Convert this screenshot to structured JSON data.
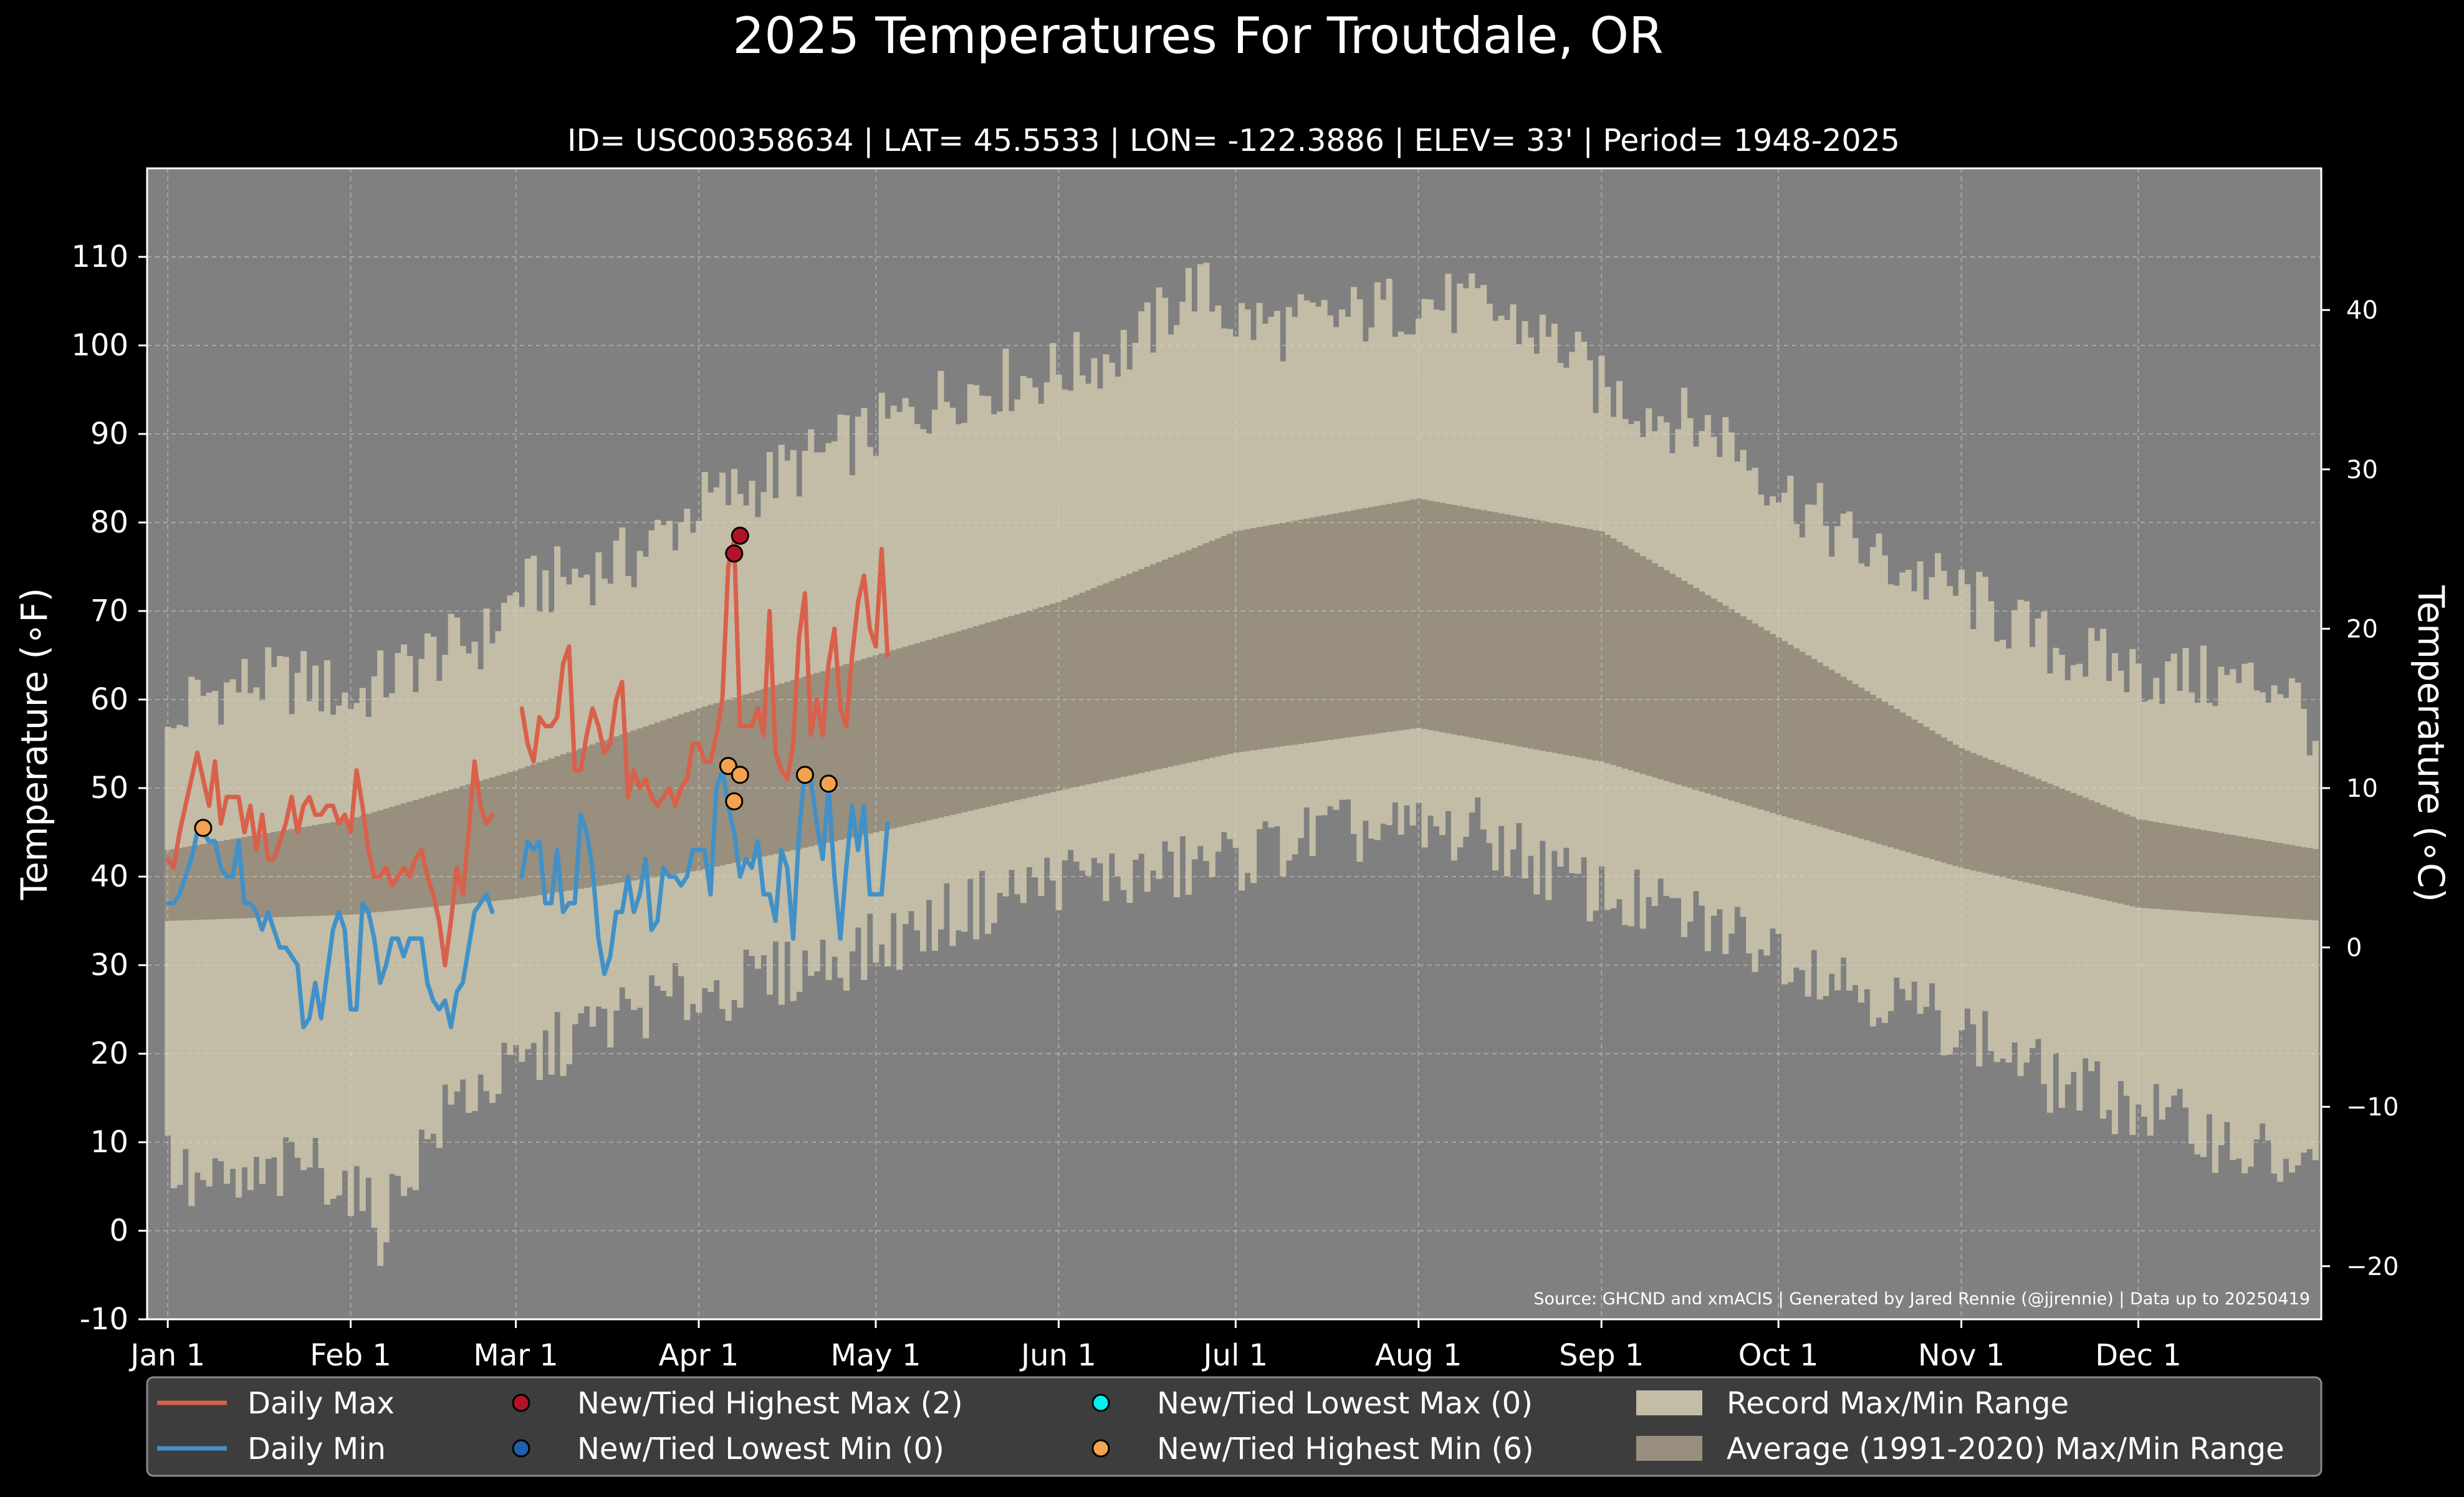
{
  "chart_data": {
    "type": "line",
    "title": "2025 Temperatures For Troutdale, OR",
    "subtitle": "ID= USC00358634 | LAT= 45.5533 | LON= -122.3886 | ELEV= 33' | Period= 1948-2025",
    "ylabel_left": "Temperature (∘F)",
    "ylabel_right": "Temperature (∘C)",
    "source": "Source: GHCND and xmACIS | Generated by Jared Rennie (@jjrennie) | Data up to 20250419",
    "ylim_f": [
      -10,
      120
    ],
    "xlim_day": [
      -2.5,
      366
    ],
    "yticks_f": [
      -10,
      0,
      10,
      20,
      30,
      40,
      50,
      60,
      70,
      80,
      90,
      100,
      110
    ],
    "yticks_c": [
      -20,
      -10,
      0,
      10,
      20,
      30,
      40
    ],
    "month_ticks": [
      {
        "label": "Jan 1",
        "day": 1
      },
      {
        "label": "Feb 1",
        "day": 32
      },
      {
        "label": "Mar 1",
        "day": 60
      },
      {
        "label": "Apr 1",
        "day": 91
      },
      {
        "label": "May 1",
        "day": 121
      },
      {
        "label": "Jun 1",
        "day": 152
      },
      {
        "label": "Jul 1",
        "day": 182
      },
      {
        "label": "Aug 1",
        "day": 213
      },
      {
        "label": "Sep 1",
        "day": 244
      },
      {
        "label": "Oct 1",
        "day": 274
      },
      {
        "label": "Nov 1",
        "day": 305
      },
      {
        "label": "Dec 1",
        "day": 335
      }
    ],
    "grid": true,
    "legend_position": "bottom",
    "colors": {
      "background": "#000000",
      "plot_bg": "#808080",
      "record_band": "#c3bca6",
      "normal_band": "#988f7e",
      "daily_max": "#d9604a",
      "daily_min": "#4191c8",
      "marker_high_max": "#b3132a",
      "marker_low_min": "#1f5fad",
      "marker_low_max": "#00f0f0",
      "marker_high_min": "#f4a24f",
      "legend_bg": "#3d3d3d",
      "text": "#ffffff"
    },
    "record_range": {
      "max_anchors": [
        [
          1,
          55
        ],
        [
          5,
          60
        ],
        [
          15,
          62
        ],
        [
          25,
          62
        ],
        [
          32,
          60
        ],
        [
          40,
          63
        ],
        [
          45,
          65
        ],
        [
          55,
          67
        ],
        [
          60,
          72
        ],
        [
          70,
          74
        ],
        [
          80,
          76
        ],
        [
          91,
          82
        ],
        [
          100,
          84
        ],
        [
          110,
          87
        ],
        [
          120,
          90
        ],
        [
          135,
          95
        ],
        [
          152,
          97
        ],
        [
          165,
          100
        ],
        [
          175,
          107
        ],
        [
          182,
          103
        ],
        [
          190,
          102
        ],
        [
          200,
          103
        ],
        [
          213,
          105
        ],
        [
          225,
          104
        ],
        [
          237,
          100
        ],
        [
          244,
          95
        ],
        [
          255,
          92
        ],
        [
          265,
          90
        ],
        [
          274,
          84
        ],
        [
          290,
          76
        ],
        [
          305,
          72
        ],
        [
          320,
          66
        ],
        [
          335,
          63
        ],
        [
          350,
          62
        ],
        [
          360,
          62
        ],
        [
          366,
          55
        ]
      ],
      "min_anchors": [
        [
          1,
          8
        ],
        [
          5,
          5
        ],
        [
          15,
          5
        ],
        [
          25,
          8
        ],
        [
          32,
          5
        ],
        [
          37,
          0
        ],
        [
          40,
          5
        ],
        [
          50,
          15
        ],
        [
          60,
          18
        ],
        [
          70,
          22
        ],
        [
          80,
          25
        ],
        [
          91,
          27
        ],
        [
          100,
          28
        ],
        [
          110,
          30
        ],
        [
          121,
          32
        ],
        [
          135,
          36
        ],
        [
          152,
          40
        ],
        [
          166,
          40
        ],
        [
          182,
          42
        ],
        [
          197,
          45
        ],
        [
          213,
          45
        ],
        [
          224,
          45
        ],
        [
          237,
          40
        ],
        [
          244,
          38
        ],
        [
          260,
          35
        ],
        [
          274,
          32
        ],
        [
          290,
          27
        ],
        [
          305,
          23
        ],
        [
          320,
          17
        ],
        [
          335,
          14
        ],
        [
          350,
          10
        ],
        [
          366,
          6
        ]
      ]
    },
    "normal_range": {
      "max_anchors": [
        [
          1,
          43
        ],
        [
          32,
          46.5
        ],
        [
          60,
          52
        ],
        [
          91,
          59
        ],
        [
          121,
          65
        ],
        [
          152,
          71
        ],
        [
          182,
          79
        ],
        [
          213,
          82.7
        ],
        [
          244,
          79
        ],
        [
          274,
          67
        ],
        [
          305,
          54.5
        ],
        [
          335,
          46.5
        ],
        [
          366,
          43
        ]
      ],
      "min_anchors": [
        [
          1,
          35
        ],
        [
          32,
          35.7
        ],
        [
          60,
          37.5
        ],
        [
          91,
          40.7
        ],
        [
          121,
          45
        ],
        [
          152,
          49.7
        ],
        [
          182,
          54
        ],
        [
          213,
          56.8
        ],
        [
          244,
          53
        ],
        [
          274,
          47
        ],
        [
          305,
          41
        ],
        [
          335,
          36.5
        ],
        [
          366,
          35
        ]
      ]
    },
    "series": [
      {
        "name": "Daily Max",
        "start_day": 1,
        "values": [
          42,
          41,
          45,
          48,
          51,
          54,
          51,
          48,
          53,
          46,
          49,
          49,
          49,
          45,
          48,
          43,
          47,
          42,
          42,
          44,
          46,
          49,
          45,
          48,
          49,
          47,
          47,
          48,
          48,
          46,
          47,
          45,
          52,
          48,
          43,
          40,
          40,
          41,
          39,
          40,
          41,
          40,
          42,
          43,
          40,
          38,
          35,
          30,
          35,
          41,
          38,
          45,
          53,
          48,
          46,
          47,
          null,
          null,
          null,
          null,
          59,
          55,
          53,
          58,
          57,
          57,
          58,
          64,
          66,
          52,
          52,
          56,
          59,
          57,
          54,
          55,
          60,
          62,
          49,
          52,
          50,
          51,
          49,
          48,
          49,
          50,
          48,
          50,
          51,
          55,
          55,
          53,
          53,
          56,
          60,
          75,
          78,
          57,
          57,
          57,
          59,
          56,
          70,
          54,
          52,
          51,
          55,
          67,
          72,
          56,
          60,
          56,
          64,
          68,
          59,
          57,
          65,
          71,
          74,
          68,
          66,
          77,
          65
        ]
      },
      {
        "name": "Daily Min",
        "start_day": 1,
        "values": [
          37,
          37,
          38,
          40,
          42,
          45,
          45,
          44,
          44,
          41,
          40,
          40,
          44,
          37,
          37,
          36,
          34,
          36,
          34,
          32,
          32,
          31,
          30,
          23,
          24,
          28,
          24,
          29,
          34,
          36,
          34,
          25,
          25,
          37,
          36,
          33,
          28,
          30,
          33,
          33,
          31,
          33,
          33,
          33,
          28,
          26,
          25,
          26,
          23,
          27,
          28,
          32,
          36,
          37,
          38,
          36,
          null,
          null,
          null,
          null,
          40,
          44,
          43,
          44,
          37,
          37,
          43,
          36,
          37,
          37,
          47,
          45,
          41,
          33,
          29,
          31,
          36,
          36,
          40,
          36,
          38,
          42,
          34,
          35,
          41,
          40,
          40,
          39,
          40,
          43,
          43,
          43,
          38,
          50,
          52,
          48,
          45,
          40,
          42,
          41,
          44,
          38,
          38,
          35,
          43,
          41,
          33,
          45,
          52,
          51,
          46,
          42,
          50,
          40,
          33,
          41,
          48,
          43,
          48,
          38,
          38,
          38,
          46
        ]
      }
    ],
    "markers": [
      {
        "kind": "high_min",
        "day": 7,
        "value": 45.5
      },
      {
        "kind": "high_max",
        "day": 97,
        "value": 76.5
      },
      {
        "kind": "high_max",
        "day": 98,
        "value": 78.5
      },
      {
        "kind": "high_min",
        "day": 96,
        "value": 52.5
      },
      {
        "kind": "high_min",
        "day": 97,
        "value": 48.5
      },
      {
        "kind": "high_min",
        "day": 98,
        "value": 51.5
      },
      {
        "kind": "high_min",
        "day": 109,
        "value": 51.5
      },
      {
        "kind": "high_min",
        "day": 113,
        "value": 50.5
      }
    ],
    "legend": [
      {
        "key": "daily_max",
        "label": "Daily Max",
        "style": "line",
        "col": 0,
        "row": 0
      },
      {
        "key": "daily_min",
        "label": "Daily Min",
        "style": "line",
        "col": 0,
        "row": 1
      },
      {
        "key": "marker_high_max",
        "label": "New/Tied Highest Max (2)",
        "style": "dot",
        "col": 1,
        "row": 0
      },
      {
        "key": "marker_low_min",
        "label": "New/Tied Lowest Min (0)",
        "style": "dot",
        "col": 1,
        "row": 1
      },
      {
        "key": "marker_low_max",
        "label": "New/Tied Lowest Max (0)",
        "style": "dot",
        "col": 2,
        "row": 0
      },
      {
        "key": "marker_high_min",
        "label": "New/Tied Highest Min (6)",
        "style": "dot",
        "col": 2,
        "row": 1
      },
      {
        "key": "record_band",
        "label": "Record Max/Min Range",
        "style": "patch",
        "col": 3,
        "row": 0
      },
      {
        "key": "normal_band",
        "label": "Average (1991-2020) Max/Min Range",
        "style": "patch",
        "col": 3,
        "row": 1
      }
    ]
  }
}
